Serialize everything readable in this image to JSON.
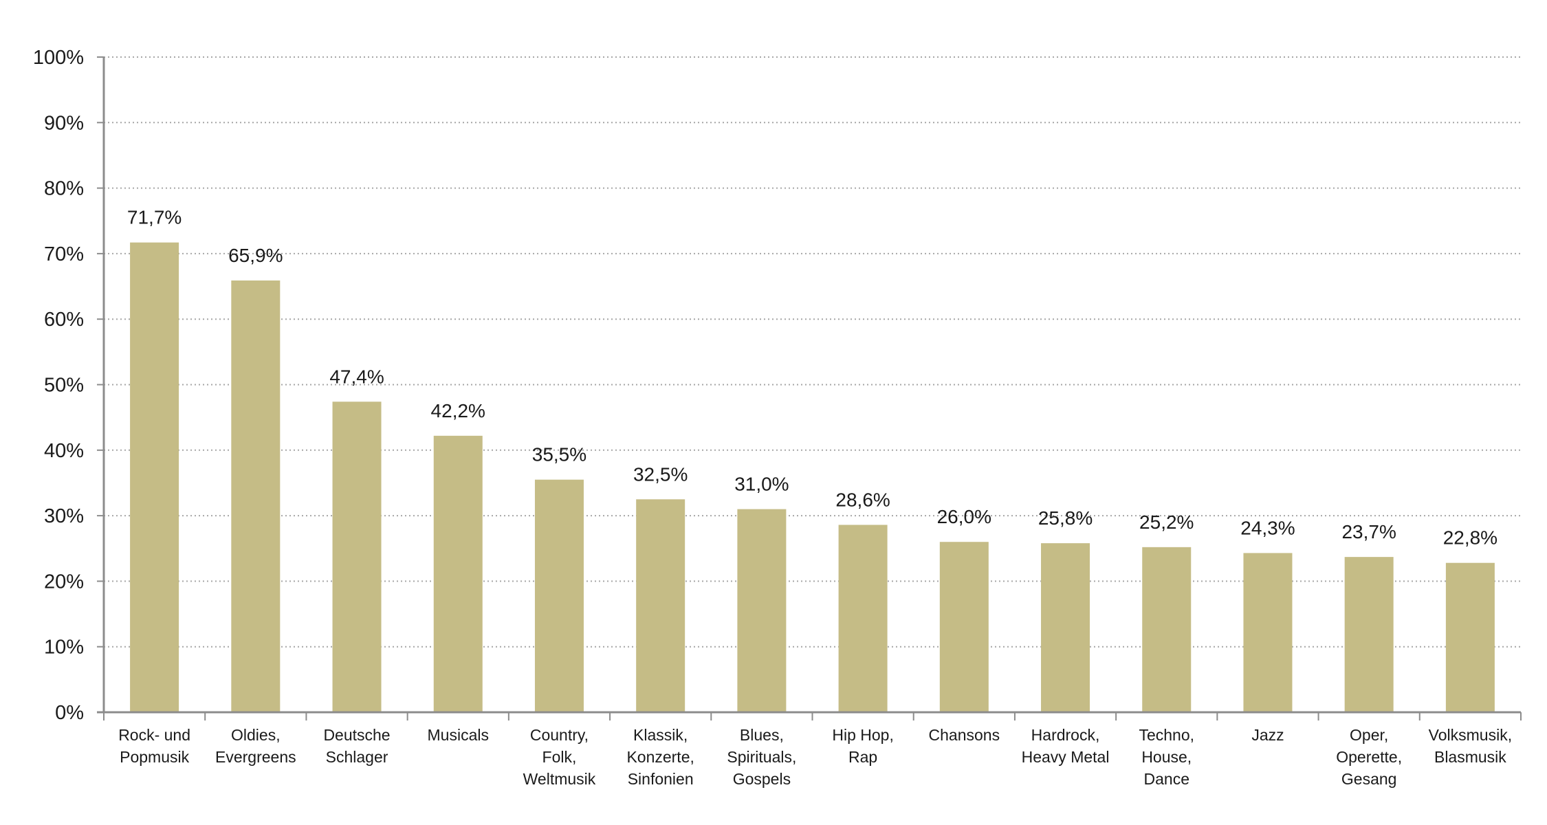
{
  "chart_data": {
    "type": "bar",
    "title": "",
    "xlabel": "",
    "ylabel": "",
    "ylim": [
      0,
      100
    ],
    "yticks": [
      "0%",
      "10%",
      "20%",
      "30%",
      "40%",
      "50%",
      "60%",
      "70%",
      "80%",
      "90%",
      "100%"
    ],
    "grid": true,
    "categories": [
      [
        "Rock- und",
        "Popmusik"
      ],
      [
        "Oldies,",
        "Evergreens"
      ],
      [
        "Deutsche",
        "Schlager"
      ],
      [
        "Musicals"
      ],
      [
        "Country,",
        "Folk,",
        "Weltmusik"
      ],
      [
        "Klassik,",
        "Konzerte,",
        "Sinfonien"
      ],
      [
        "Blues,",
        "Spirituals,",
        "Gospels"
      ],
      [
        "Hip Hop,",
        "Rap"
      ],
      [
        "Chansons"
      ],
      [
        "Hardrock,",
        "Heavy Metal"
      ],
      [
        "Techno,",
        "House,",
        "Dance"
      ],
      [
        "Jazz"
      ],
      [
        "Oper,",
        "Operette,",
        "Gesang"
      ],
      [
        "Volksmusik,",
        "Blasmusik"
      ]
    ],
    "values": [
      71.7,
      65.9,
      47.4,
      42.2,
      35.5,
      32.5,
      31.0,
      28.6,
      26.0,
      25.8,
      25.2,
      24.3,
      23.7,
      22.8
    ],
    "value_labels": [
      "71,7%",
      "65,9%",
      "47,4%",
      "42,2%",
      "35,5%",
      "32,5%",
      "31,0%",
      "28,6%",
      "26,0%",
      "25,8%",
      "25,2%",
      "24,3%",
      "23,7%",
      "22,8%"
    ],
    "colors": {
      "bar": "#c5bc86",
      "grid": "#a6a6a6",
      "axis": "#8c8c8c",
      "text": "#1a1a1a"
    }
  }
}
